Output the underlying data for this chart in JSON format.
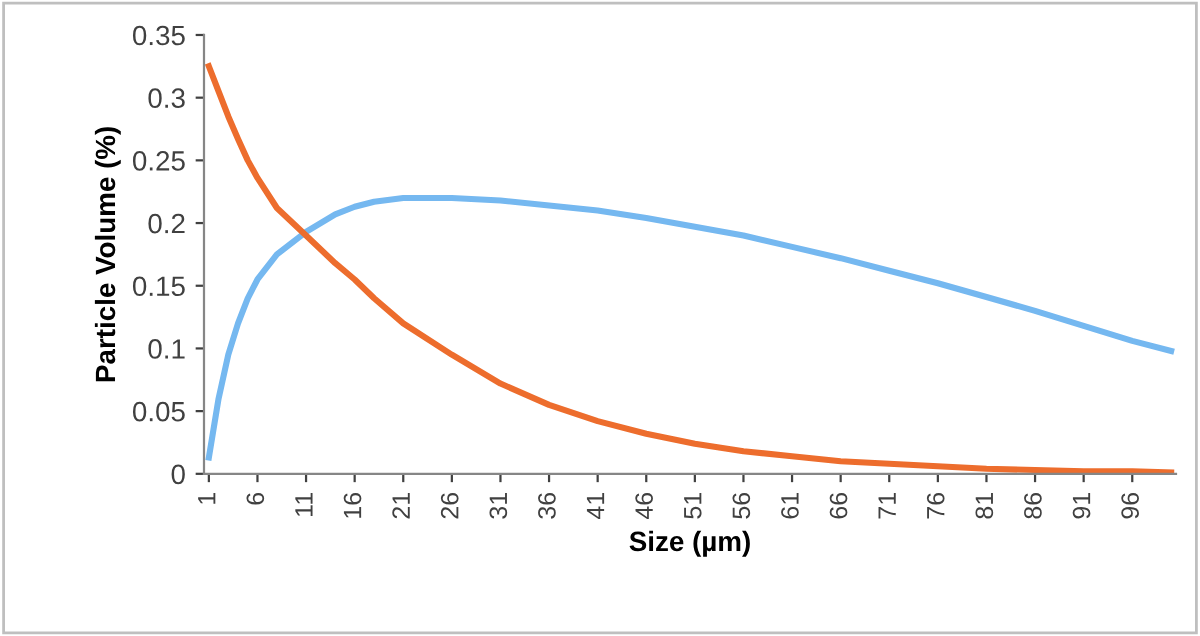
{
  "chart_data": {
    "type": "line",
    "xlabel": "Size (µm)",
    "ylabel": "Particle Volume (%)",
    "xlim": [
      0.5,
      100.5
    ],
    "xticks": [
      1,
      6,
      11,
      16,
      21,
      26,
      31,
      36,
      41,
      46,
      51,
      56,
      61,
      66,
      71,
      76,
      81,
      86,
      91,
      96
    ],
    "ylim": [
      0,
      0.35
    ],
    "yticks": [
      0,
      0.05,
      0.1,
      0.15,
      0.2,
      0.25,
      0.3,
      0.35
    ],
    "grid": false,
    "marker": "none",
    "line_style": "solid",
    "series": [
      {
        "color": "#75b8f0",
        "x": [
          1,
          2,
          3,
          4,
          5,
          6,
          8,
          11,
          14,
          16,
          18,
          21,
          26,
          31,
          36,
          41,
          46,
          51,
          56,
          61,
          66,
          71,
          76,
          81,
          86,
          91,
          96,
          100
        ],
        "values": [
          0.013,
          0.06,
          0.095,
          0.12,
          0.14,
          0.155,
          0.175,
          0.193,
          0.207,
          0.213,
          0.217,
          0.22,
          0.22,
          0.218,
          0.214,
          0.21,
          0.204,
          0.197,
          0.19,
          0.181,
          0.172,
          0.162,
          0.152,
          0.141,
          0.13,
          0.118,
          0.106,
          0.098
        ]
      },
      {
        "color": "#ed6d2d",
        "x": [
          1,
          2,
          3,
          4,
          5,
          6,
          8,
          11,
          14,
          16,
          18,
          21,
          26,
          31,
          36,
          41,
          46,
          51,
          56,
          61,
          66,
          71,
          76,
          81,
          86,
          91,
          96,
          100
        ],
        "values": [
          0.325,
          0.305,
          0.285,
          0.267,
          0.25,
          0.236,
          0.212,
          0.19,
          0.168,
          0.155,
          0.14,
          0.12,
          0.095,
          0.072,
          0.055,
          0.042,
          0.032,
          0.024,
          0.018,
          0.014,
          0.01,
          0.008,
          0.006,
          0.004,
          0.003,
          0.002,
          0.002,
          0.001
        ]
      }
    ]
  }
}
